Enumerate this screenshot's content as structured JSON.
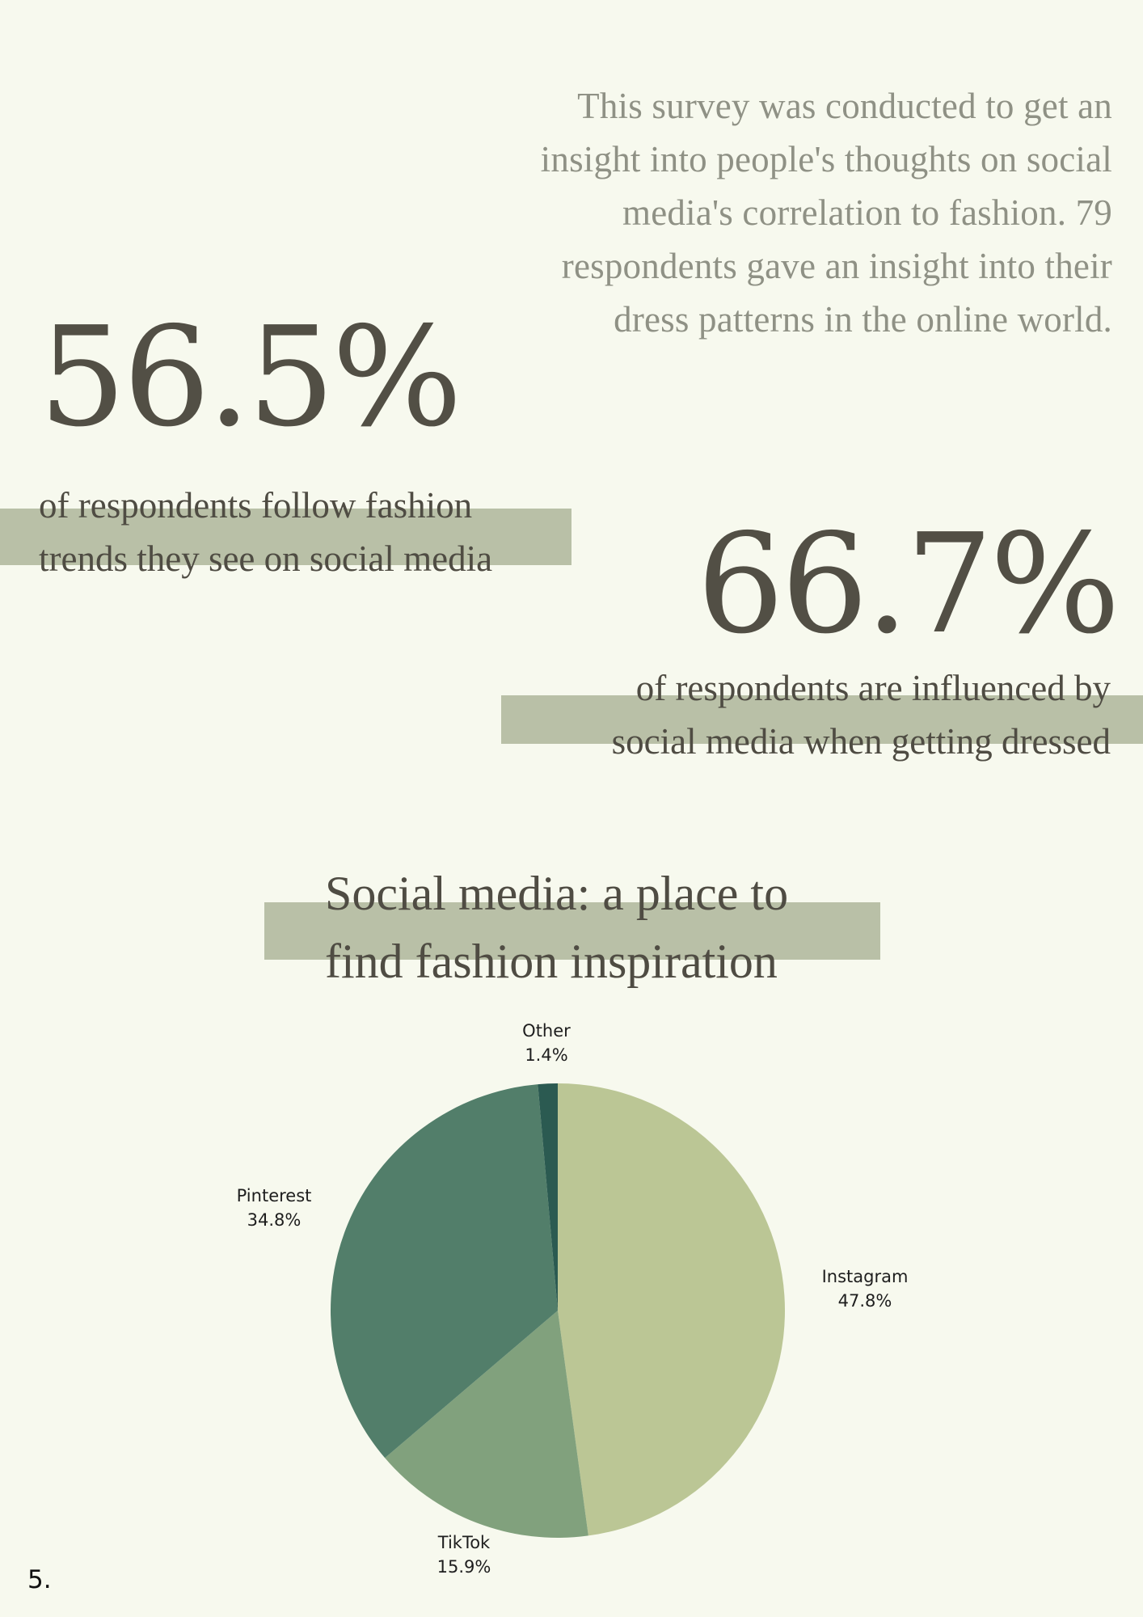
{
  "intro": {
    "text": "This survey was conducted to get an insight into people's thoughts on social media's correlation to fashion. 79 respondents gave an insight into their dress patterns in the online world."
  },
  "stat_follow": {
    "value": "56.5%",
    "caption": "of respondents follow fashion\ntrends they see on social media"
  },
  "stat_influenced": {
    "value": "66.7%",
    "caption": "of respondents are influenced by\nsocial media when getting dressed"
  },
  "chart_title": "Social media: a place to\nfind fashion inspiration",
  "chart_data": {
    "type": "pie",
    "title": "Social media: a place to find fashion inspiration",
    "slices": [
      {
        "name": "Instagram",
        "value": 47.8,
        "label": "47.8%",
        "color": "#bbc695"
      },
      {
        "name": "TikTok",
        "value": 15.9,
        "label": "15.9%",
        "color": "#81a17d"
      },
      {
        "name": "Pinterest",
        "value": 34.8,
        "label": "34.8%",
        "color": "#527e6a"
      },
      {
        "name": "Other",
        "value": 1.4,
        "label": "1.4%",
        "color": "#2b5a51"
      }
    ],
    "start": "12 o'clock",
    "direction": "clockwise",
    "legend": "none (direct labels)"
  },
  "colors": {
    "background": "#f7f9ee",
    "band": "#b9c0a7",
    "text_dark": "#4f4c43",
    "text_muted": "#8f9185"
  },
  "page_number": "5."
}
